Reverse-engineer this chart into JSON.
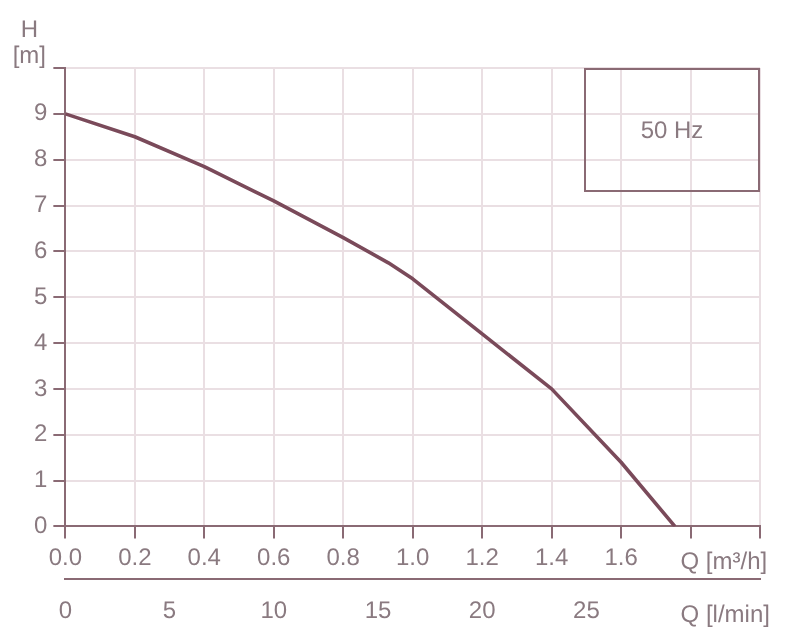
{
  "chart_data": {
    "type": "line",
    "xlabel": "Q [m³/h]",
    "x2label": "Q [l/min]",
    "ylabel": "H [m]",
    "annotations": [
      "50 Hz"
    ],
    "x": [
      0,
      0.2,
      0.4,
      0.6,
      0.8,
      0.93,
      1.0,
      1.2,
      1.4,
      1.6,
      1.755
    ],
    "series": [
      {
        "color": "#7a4a5a",
        "values": [
          9,
          8.5,
          7.85,
          7.1,
          6.3,
          5.75,
          5.4,
          4.2,
          3.0,
          1.4,
          0
        ]
      }
    ],
    "xlim": [
      0,
      2.0
    ],
    "xticks": [
      {
        "value": 0,
        "label": "0.0"
      },
      0.2,
      0.4,
      0.6,
      0.8,
      {
        "value": 1,
        "label": "1.0"
      },
      1.2,
      1.4,
      1.6,
      {
        "value": 1.8,
        "label": null
      },
      {
        "value": 2.0,
        "label": null
      }
    ],
    "x2lim": [
      0,
      33.33
    ],
    "x2ticks": [
      0,
      5,
      10,
      15,
      20,
      25,
      {
        "value": 30,
        "label": null
      }
    ],
    "ylim": [
      0,
      10
    ],
    "yticks": [
      0,
      1,
      2,
      3,
      4,
      5,
      6,
      7,
      8,
      9,
      {
        "value": 10,
        "label": null
      }
    ],
    "grid": true,
    "legend": false,
    "marker": "none",
    "line_style": "solid"
  }
}
